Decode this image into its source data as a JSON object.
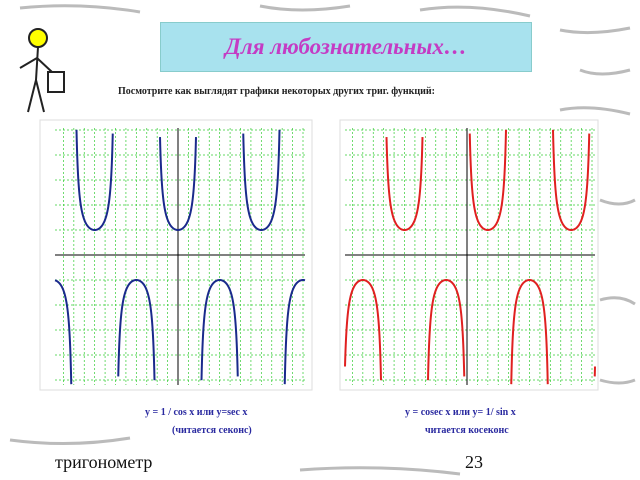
{
  "header": {
    "title": "Для любознательных…",
    "subtitle": "Посмотрите как выглядят графики некоторых других триг. функций:"
  },
  "graphs": [
    {
      "caption": "y = 1 / cos x или y=sec x",
      "note": "(читается секонс)"
    },
    {
      "caption": "y = cosec x или y= 1/ sin x",
      "note": "читается косеконс"
    }
  ],
  "footer": {
    "text": "тригонометр",
    "page": "23"
  }
}
